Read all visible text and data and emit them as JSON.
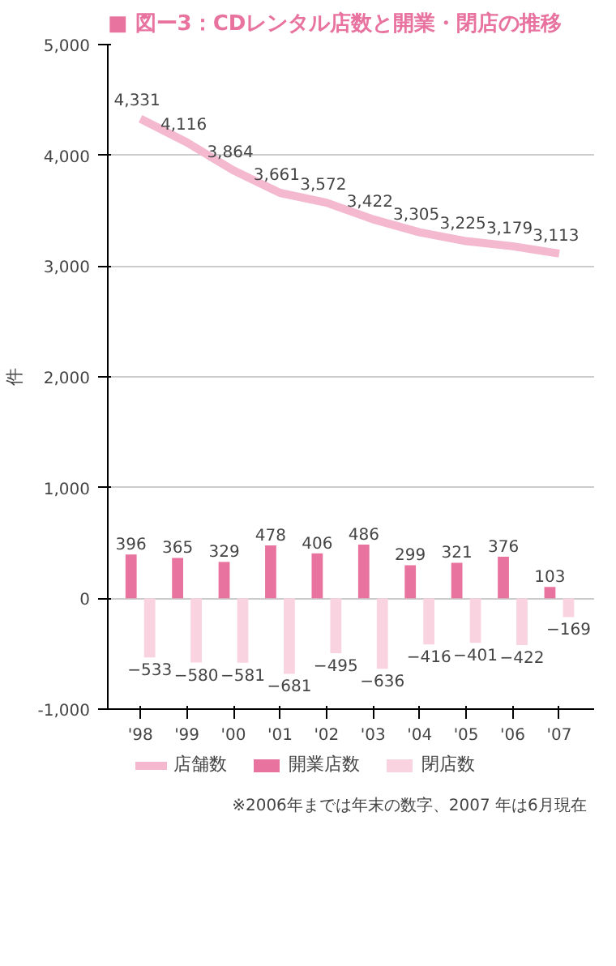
{
  "chart_data": {
    "type": "bar",
    "title": "■ 図ー3：CDレンタル店数と開業・閉店の推移",
    "ylabel": "件",
    "categories": [
      "'98",
      "'99",
      "'00",
      "'01",
      "'02",
      "'03",
      "'04",
      "'05",
      "'06",
      "'07"
    ],
    "series": [
      {
        "name": "店舗数",
        "type": "line",
        "color": "#f4b8cf",
        "values": [
          4331,
          4116,
          3864,
          3661,
          3572,
          3422,
          3305,
          3225,
          3179,
          3113
        ],
        "value_labels": [
          "4,331",
          "4,116",
          "3,864",
          "3,661",
          "3,572",
          "3,422",
          "3,305",
          "3,225",
          "3,179",
          "3,113"
        ]
      },
      {
        "name": "開業店数",
        "color": "#e8739f",
        "values": [
          396,
          365,
          329,
          478,
          406,
          486,
          299,
          321,
          376,
          103
        ],
        "value_labels": [
          "396",
          "365",
          "329",
          "478",
          "406",
          "486",
          "299",
          "321",
          "376",
          "103"
        ]
      },
      {
        "name": "閉店数",
        "color": "#f9d3e0",
        "values": [
          -533,
          -580,
          -581,
          -681,
          -495,
          -636,
          -416,
          -401,
          -422,
          -169
        ],
        "value_labels": [
          "−533",
          "−580",
          "−581",
          "−681",
          "−495",
          "−636",
          "−416",
          "−401",
          "−422",
          "−169"
        ]
      }
    ],
    "ylim": [
      -1000,
      5000
    ],
    "yticks": [
      {
        "value": -1000,
        "label": "-1,000"
      },
      0,
      {
        "value": 1000,
        "label": "1,000"
      },
      {
        "value": 2000,
        "label": "2,000"
      },
      {
        "value": 3000,
        "label": "3,000"
      },
      {
        "value": 4000,
        "label": "4,000"
      },
      {
        "value": 5000,
        "label": "5,000"
      }
    ],
    "grid": "y",
    "legend": "bottom",
    "annotations": [
      "※2006年までは年末の数字、2007 年は6月現在"
    ]
  }
}
